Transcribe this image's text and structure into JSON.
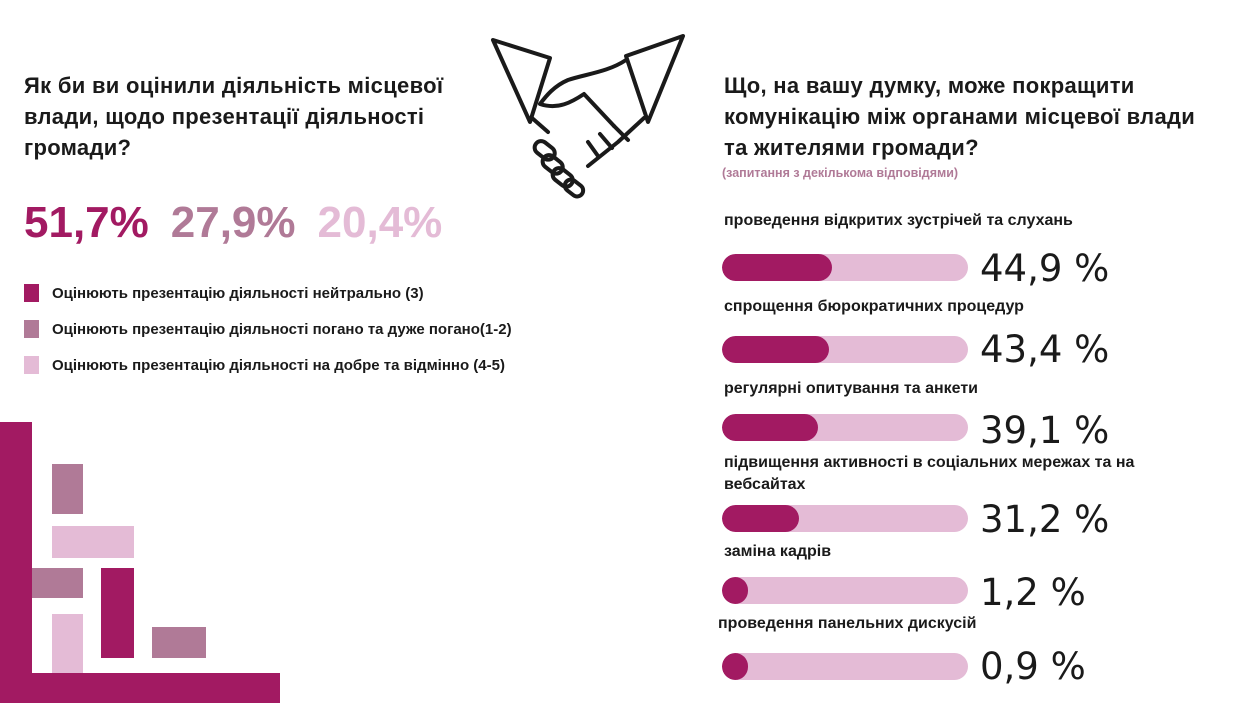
{
  "colors": {
    "dark": "#a21a62",
    "medium": "#b07a97",
    "light": "#e4bbd6"
  },
  "left": {
    "question": "Як би ви оцінили діяльність місцевої влади, щодо презентації діяльності громади?",
    "legend": [
      {
        "label": "Оцінюють презентацію діяльності нейтрально (3)",
        "color": "#a21a62"
      },
      {
        "label": "Оцінюють презентацію діяльності  погано та дуже погано(1-2)",
        "color": "#b07a97"
      },
      {
        "label": "Оцінюють презентацію діяльності на добре та відмінно (4-5)",
        "color": "#e4bbd6"
      }
    ]
  },
  "right": {
    "question": "Що, на вашу думку, може покращити комунікацію між органами місцевої влади та жителями громади?",
    "note": "(запитання з декількома відповідями)"
  },
  "icon": "handshake-icon",
  "chart_data": [
    {
      "type": "table",
      "series": [
        {
          "name": "Оцінюють презентацію діяльності нейтрально (3)",
          "value": 51.7,
          "display": "51,7%",
          "color": "#a21a62"
        },
        {
          "name": "Оцінюють презентацію діяльності  погано та дуже погано(1-2)",
          "value": 27.9,
          "display": "27,9%",
          "color": "#b07a97"
        },
        {
          "name": "Оцінюють презентацію діяльності на добре та відмінно (4-5)",
          "value": 20.4,
          "display": "20,4%",
          "color": "#e4bbd6"
        }
      ]
    },
    {
      "type": "bar",
      "orientation": "horizontal",
      "categories": [
        "проведення відкритих зустрічей та слухань",
        "спрощення бюрократичних процедур",
        "регулярні опитування та анкети",
        "підвищення активності в соціальних мережах та на вебсайтах",
        "заміна кадрів",
        "проведення панельних дискусій"
      ],
      "values": [
        44.9,
        43.4,
        39.1,
        31.2,
        1.2,
        0.9
      ],
      "labels": [
        "44,9 %",
        "43,4 %",
        "39,1 %",
        "31,2 %",
        "1,2 %",
        "0,9 %"
      ],
      "xlim": [
        0,
        100
      ]
    }
  ]
}
